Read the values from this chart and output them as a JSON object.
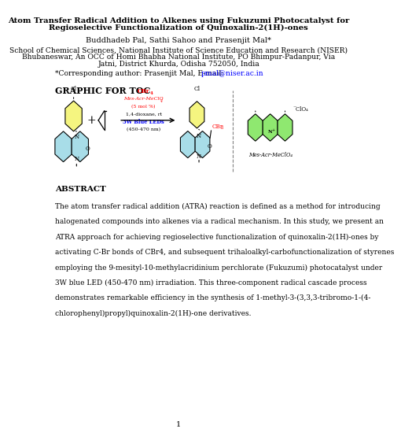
{
  "title_line1": "Atom Transfer Radical Addition to Alkenes using Fukuzumi Photocatalyst for",
  "title_line2": "Regioselective Functionalization of Quinoxalin-2(1H)-ones",
  "authors": "Buddhadeb Pal, Sathi Sahoo and Prasenjit Mal*",
  "affiliation1": "School of Chemical Sciences, National Institute of Science Education and Research (NISER)",
  "affiliation2": "Bhubaneswar, An OCC of Homi Bhabha National Institute, PO Bhimpur-Padanpur, Via",
  "affiliation3": "Jatni, District Khurda, Odisha 752050, India",
  "corresponding": "*Corresponding author: Prasenjit Mal, E-mail: ",
  "email": "pmal@niser.ac.in",
  "toc_label": "GRAPHIC FOR TOC",
  "abstract_label": "ABSTRACT",
  "abstract_lines": [
    "The atom transfer radical addition (ATRA) reaction is defined as a method for introducing",
    "halogenated compounds into alkenes via a radical mechanism. In this study, we present an",
    "ATRA approach for achieving regioselective functionalization of quinoxalin-2(1H)-ones by",
    "activating C-Br bonds of CBr4, and subsequent trihaloalkyl-carbofunctionalization of styrenes",
    "employing the 9-mesityl-10-methylacridinium perchlorate (Fukuzumi) photocatalyst under",
    "3W blue LED (450-470 nm) irradiation. This three-component radical cascade process",
    "demonstrates remarkable efficiency in the synthesis of 1-methyl-3-(3,3,3-tribromo-1-(4-",
    "chlorophenyl)propyl)quinoxalin-2(1H)-one derivatives."
  ],
  "page_number": "1",
  "bg_color": "#ffffff",
  "benzene_color": "#f5f580",
  "quinox_color": "#a8dde8",
  "catalyst_color": "#8fe870"
}
